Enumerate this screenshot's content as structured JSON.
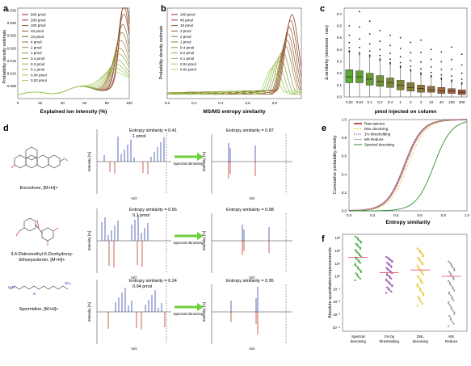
{
  "panels": {
    "a": {
      "label": "a",
      "ylabel": "Probability density estimate",
      "xlabel": "Explained ion intensity (%)",
      "xticks": [
        "0",
        "20",
        "40",
        "60",
        "80",
        "100"
      ],
      "yticks": [
        "0.005",
        "0.010",
        "0.015",
        "0.020",
        "0.025",
        "0.030",
        "0.035"
      ],
      "legend": [
        "500 pmol",
        "200 pmol",
        "100 pmol",
        "40 pmol",
        "10 pmol",
        "4 pmol",
        "2 pmol",
        "1 pmol",
        "0.4 pmol",
        "0.2 pmol",
        "0.1 pmol",
        "0.04 pmol",
        "0.02 pmol"
      ]
    },
    "b": {
      "label": "b",
      "ylabel": "Probability density estimate",
      "xlabel": "MS/MS entropy similarity",
      "xticks": [
        "0.0",
        "0.2",
        "0.4",
        "0.6",
        "0.8"
      ],
      "legend": [
        "100 pmol",
        "40 pmol",
        "10 pmol",
        "4 pmol",
        "2 pmol",
        "1 pmol",
        "0.4 pmol",
        "0.2 pmol",
        "0.1 pmol",
        "0.04 pmol",
        "0.02 pmol"
      ]
    },
    "c": {
      "label": "c",
      "ylabel": "Δ similarity (denoised - raw)",
      "xlabel": "pmol injected on column",
      "yticks": [
        "0.0",
        "0.1",
        "0.2",
        "0.3",
        "0.4",
        "0.5",
        "0.6",
        "0.7"
      ],
      "categories": [
        "0.02",
        "0.04",
        "0.1",
        "0.2",
        "0.4",
        "1",
        "2",
        "4",
        "10",
        "40",
        "100",
        "200"
      ]
    },
    "d": {
      "label": "d",
      "compounds": [
        {
          "name": "Enoxolone, [M+H]+",
          "raw_similarity": "Entropy similarity = 0.41",
          "amount": "1 pmol",
          "denoised_similarity": "Entropy similarity = 0.87"
        },
        {
          "name": "3,4-Didesmethyl-5-Deshydroxy-Ethoxyscleroin, [M+H]+",
          "raw_similarity": "Entropy similarity = 0.56",
          "amount": "0.1 pmol",
          "denoised_similarity": "Entropy similarity = 0.98"
        },
        {
          "name": "Spermidine, [M+H]+",
          "raw_similarity": "Entropy similarity = 0.24",
          "amount": "0.04 pmol",
          "denoised_similarity": "Entropy similarity = 0.95"
        }
      ],
      "arrow_label": "Spectral denoising",
      "ylabel": "Intensity [%]",
      "xlabel": "m/z"
    },
    "e": {
      "label": "e",
      "ylabel": "Cumulative probability density",
      "xlabel": "Entropy similarity",
      "xticks": [
        "0.0",
        "0.2",
        "0.4",
        "0.6",
        "0.8",
        "1.0"
      ],
      "yticks": [
        "0.0",
        "0.2",
        "0.4",
        "0.6",
        "0.8",
        "1.0"
      ],
      "legend": [
        "Raw spectra",
        "DNL denoising",
        "1% thresholding",
        "MS Reduce",
        "Spectral denoising"
      ]
    },
    "f": {
      "label": "f",
      "ylabel": "Absolute quantitation improvements",
      "categories": [
        "Spectral denoising",
        "1% bp thresholding",
        "DNL denoising",
        "MS Reduce"
      ],
      "yticks": [
        "10³",
        "10²",
        "10¹",
        "10⁰",
        "10⁻¹",
        "10⁻²",
        "10⁻³",
        "10⁻⁴"
      ]
    }
  },
  "colors": {
    "red": "#c0392b",
    "green": "#2e9e2e",
    "purple": "#7d3c98",
    "gold": "#e6b800",
    "gray": "#888888",
    "blue": "#3344aa"
  },
  "chart_data": [
    {
      "panel": "a",
      "type": "line",
      "title": "",
      "xlabel": "Explained ion intensity (%)",
      "ylabel": "Probability density estimate",
      "xlim": [
        0,
        100
      ],
      "ylim": [
        0,
        0.036
      ],
      "series": [
        {
          "name": "500 pmol",
          "peak_x": 96,
          "peak_y": 0.035
        },
        {
          "name": "200 pmol",
          "peak_x": 96,
          "peak_y": 0.033
        },
        {
          "name": "100 pmol",
          "peak_x": 95,
          "peak_y": 0.03
        },
        {
          "name": "40 pmol",
          "peak_x": 95,
          "peak_y": 0.027
        },
        {
          "name": "10 pmol",
          "peak_x": 94,
          "peak_y": 0.023
        },
        {
          "name": "4 pmol",
          "peak_x": 93,
          "peak_y": 0.02
        },
        {
          "name": "2 pmol",
          "peak_x": 92,
          "peak_y": 0.017
        },
        {
          "name": "1 pmol",
          "peak_x": 91,
          "peak_y": 0.014
        },
        {
          "name": "0.4 pmol",
          "peak_x": 90,
          "peak_y": 0.012
        },
        {
          "name": "0.2 pmol",
          "peak_x": 88,
          "peak_y": 0.01
        },
        {
          "name": "0.1 pmol",
          "peak_x": 86,
          "peak_y": 0.009
        },
        {
          "name": "0.04 pmol",
          "peak_x": 84,
          "peak_y": 0.008
        },
        {
          "name": "0.02 pmol",
          "peak_x": 82,
          "peak_y": 0.007
        }
      ]
    },
    {
      "panel": "b",
      "type": "line",
      "title": "",
      "xlabel": "MS/MS entropy similarity",
      "ylabel": "Probability density estimate",
      "xlim": [
        0,
        1
      ],
      "series": [
        {
          "name": "100 pmol",
          "peak_x": 0.93,
          "peak_rel": 1.0
        },
        {
          "name": "40 pmol",
          "peak_x": 0.92,
          "peak_rel": 0.93
        },
        {
          "name": "10 pmol",
          "peak_x": 0.91,
          "peak_rel": 0.85
        },
        {
          "name": "4 pmol",
          "peak_x": 0.9,
          "peak_rel": 0.77
        },
        {
          "name": "2 pmol",
          "peak_x": 0.89,
          "peak_rel": 0.7
        },
        {
          "name": "1 pmol",
          "peak_x": 0.88,
          "peak_rel": 0.63
        },
        {
          "name": "0.4 pmol",
          "peak_x": 0.86,
          "peak_rel": 0.56
        },
        {
          "name": "0.2 pmol",
          "peak_x": 0.84,
          "peak_rel": 0.5
        },
        {
          "name": "0.1 pmol",
          "peak_x": 0.82,
          "peak_rel": 0.45
        },
        {
          "name": "0.04 pmol",
          "peak_x": 0.8,
          "peak_rel": 0.4
        },
        {
          "name": "0.02 pmol",
          "peak_x": 0.78,
          "peak_rel": 0.36
        }
      ]
    },
    {
      "panel": "c",
      "type": "bar",
      "title": "",
      "xlabel": "pmol injected on column",
      "ylabel": "Δ similarity (denoised - raw)",
      "ylim": [
        0,
        0.75
      ],
      "categories": [
        "0.02",
        "0.04",
        "0.1",
        "0.2",
        "0.4",
        "1",
        "2",
        "4",
        "10",
        "40",
        "100",
        "200"
      ],
      "medians": [
        0.17,
        0.17,
        0.15,
        0.13,
        0.12,
        0.1,
        0.08,
        0.07,
        0.06,
        0.05,
        0.05,
        0.04
      ],
      "q1": [
        0.12,
        0.12,
        0.1,
        0.09,
        0.08,
        0.06,
        0.05,
        0.04,
        0.04,
        0.03,
        0.03,
        0.02
      ],
      "q3": [
        0.23,
        0.22,
        0.2,
        0.18,
        0.16,
        0.14,
        0.12,
        0.1,
        0.09,
        0.08,
        0.07,
        0.06
      ],
      "whisker_hi": [
        0.38,
        0.36,
        0.34,
        0.31,
        0.28,
        0.25,
        0.22,
        0.19,
        0.17,
        0.15,
        0.13,
        0.11
      ],
      "outlier_max": [
        0.6,
        0.72,
        0.64,
        0.56,
        0.52,
        0.5,
        0.46,
        0.48,
        0.4,
        0.38,
        0.42,
        0.36
      ]
    },
    {
      "panel": "e",
      "type": "line",
      "title": "",
      "xlabel": "Entropy similarity",
      "ylabel": "Cumulative probability density",
      "xlim": [
        0,
        1
      ],
      "ylim": [
        0,
        1
      ],
      "series": [
        {
          "name": "Raw spectra",
          "median_x": 0.47
        },
        {
          "name": "DNL denoising",
          "median_x": 0.5
        },
        {
          "name": "1% thresholding",
          "median_x": 0.48
        },
        {
          "name": "MS Reduce",
          "median_x": 0.47
        },
        {
          "name": "Spectral denoising",
          "median_x": 0.72
        }
      ]
    },
    {
      "panel": "f",
      "type": "scatter",
      "title": "",
      "ylabel": "Absolute quantitation improvements",
      "categories": [
        "Spectral denoising",
        "1% bp thresholding",
        "DNL denoising",
        "MS Reduce"
      ],
      "log_scale": true,
      "mean_log10": [
        1.5,
        0.3,
        0.5,
        0.0
      ]
    }
  ]
}
